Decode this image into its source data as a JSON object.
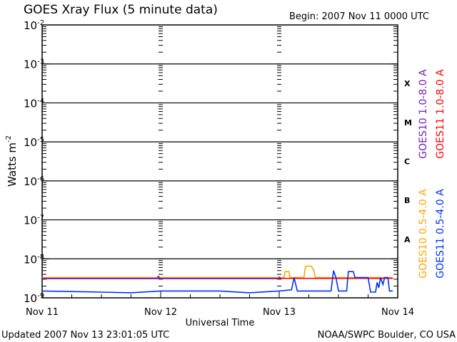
{
  "chart_data": {
    "type": "line",
    "title": "GOES Xray Flux (5 minute data)",
    "begin_label": "Begin:  2007 Nov 11 0000 UTC",
    "xlabel": "Universal Time",
    "ylabel": "Watts m",
    "ylabel_exp": "-2",
    "xlim": [
      "2007-11-11T00:00",
      "2007-11-14T00:00"
    ],
    "ylim": [
      1e-09,
      0.01
    ],
    "yscale": "log",
    "x_ticks": [
      {
        "t": "2007-11-11T00:00",
        "label": "Nov 11"
      },
      {
        "t": "2007-11-12T00:00",
        "label": "Nov 12"
      },
      {
        "t": "2007-11-13T00:00",
        "label": "Nov 13"
      },
      {
        "t": "2007-11-14T00:00",
        "label": "Nov 14"
      }
    ],
    "y_ticks": [
      {
        "exp": -2,
        "base": "10",
        "sup": "-2"
      },
      {
        "exp": -3,
        "base": "10",
        "sup": "-3"
      },
      {
        "exp": -4,
        "base": "10",
        "sup": "-4"
      },
      {
        "exp": -5,
        "base": "10",
        "sup": "-5"
      },
      {
        "exp": -6,
        "base": "10",
        "sup": "-6"
      },
      {
        "exp": -7,
        "base": "10",
        "sup": "-7"
      },
      {
        "exp": -8,
        "base": "10",
        "sup": "-8"
      },
      {
        "exp": -9,
        "base": "10",
        "sup": "-9"
      }
    ],
    "flare_classes": [
      {
        "label": "X",
        "exp": -4
      },
      {
        "label": "M",
        "exp": -5
      },
      {
        "label": "C",
        "exp": -6
      },
      {
        "label": "B",
        "exp": -7
      },
      {
        "label": "A",
        "exp": -8
      }
    ],
    "grid": true,
    "legend_placement": "right (vertical)",
    "series": [
      {
        "name": "GOES10 0.5-4.0 A",
        "color": "#ffa500",
        "points": [
          [
            "2007-11-11T00:00",
            3.3e-09
          ],
          [
            "2007-11-13T01:00",
            3.3e-09
          ],
          [
            "2007-11-13T01:10",
            4.7e-09
          ],
          [
            "2007-11-13T02:00",
            4.7e-09
          ],
          [
            "2007-11-13T02:10",
            3.3e-09
          ],
          [
            "2007-11-13T05:00",
            3.3e-09
          ],
          [
            "2007-11-13T05:20",
            6.5e-09
          ],
          [
            "2007-11-13T06:30",
            6.5e-09
          ],
          [
            "2007-11-13T07:00",
            5e-09
          ],
          [
            "2007-11-13T07:20",
            3.3e-09
          ],
          [
            "2007-11-13T23:00",
            3.3e-09
          ]
        ]
      },
      {
        "name": "GOES11 1.0-8.0 A",
        "color": "#ff0000",
        "points": [
          [
            "2007-11-11T00:00",
            3.15e-09
          ],
          [
            "2007-11-13T23:00",
            3.15e-09
          ]
        ]
      },
      {
        "name": "GOES10 1.0-8.0 A",
        "color": "#7020c0",
        "points": [
          [
            "2007-11-11T00:00",
            3.1e-09
          ],
          [
            "2007-11-11T23:20",
            3.1e-09
          ],
          [
            "2007-11-11T23:25",
            3.5e-09
          ],
          [
            "2007-11-11T23:40",
            3.5e-09
          ],
          [
            "2007-11-11T23:45",
            3.1e-09
          ],
          [
            "2007-11-12T23:55",
            3.1e-09
          ],
          [
            "2007-11-13T00:00",
            3.4e-09
          ],
          [
            "2007-11-13T00:20",
            3.1e-09
          ]
        ]
      },
      {
        "name": "GOES11 0.5-4.0 A",
        "color": "#0030ff",
        "points": [
          [
            "2007-11-11T00:00",
            1.5e-09
          ],
          [
            "2007-11-11T06:00",
            1.45e-09
          ],
          [
            "2007-11-11T12:00",
            1.4e-09
          ],
          [
            "2007-11-11T18:00",
            1.35e-09
          ],
          [
            "2007-11-12T00:00",
            1.5e-09
          ],
          [
            "2007-11-12T12:00",
            1.5e-09
          ],
          [
            "2007-11-12T18:00",
            1.35e-09
          ],
          [
            "2007-11-13T00:00",
            1.5e-09
          ],
          [
            "2007-11-13T02:30",
            1.6e-09
          ],
          [
            "2007-11-13T03:00",
            3.3e-09
          ],
          [
            "2007-11-13T03:40",
            1.5e-09
          ],
          [
            "2007-11-13T10:30",
            1.5e-09
          ],
          [
            "2007-11-13T11:00",
            5e-09
          ],
          [
            "2007-11-13T11:30",
            3.3e-09
          ],
          [
            "2007-11-13T12:00",
            1.5e-09
          ],
          [
            "2007-11-13T13:40",
            1.5e-09
          ],
          [
            "2007-11-13T14:00",
            4.7e-09
          ],
          [
            "2007-11-13T15:00",
            4.7e-09
          ],
          [
            "2007-11-13T15:20",
            3.3e-09
          ],
          [
            "2007-11-13T18:00",
            3.3e-09
          ],
          [
            "2007-11-13T18:30",
            1.4e-09
          ],
          [
            "2007-11-13T19:30",
            1.4e-09
          ],
          [
            "2007-11-13T19:50",
            2.5e-09
          ],
          [
            "2007-11-13T20:10",
            1.8e-09
          ],
          [
            "2007-11-13T20:30",
            3.3e-09
          ],
          [
            "2007-11-13T21:00",
            2.2e-09
          ],
          [
            "2007-11-13T21:20",
            3.3e-09
          ],
          [
            "2007-11-13T22:00",
            3.3e-09
          ],
          [
            "2007-11-13T22:20",
            1.5e-09
          ],
          [
            "2007-11-13T23:00",
            1.5e-09
          ]
        ]
      }
    ],
    "legend": [
      {
        "label": "GOES10 1.0-8.0 A",
        "color": "#7020c0"
      },
      {
        "label": "GOES11 1.0-8.0 A",
        "color": "#ff0000"
      },
      {
        "label": "GOES10 0.5-4.0 A",
        "color": "#ffa500"
      },
      {
        "label": "GOES11 0.5-4.0 A",
        "color": "#0030ff"
      }
    ]
  },
  "footer": {
    "updated": "Updated 2007 Nov 13 23:01:05 UTC",
    "source": "NOAA/SWPC Boulder, CO USA"
  }
}
